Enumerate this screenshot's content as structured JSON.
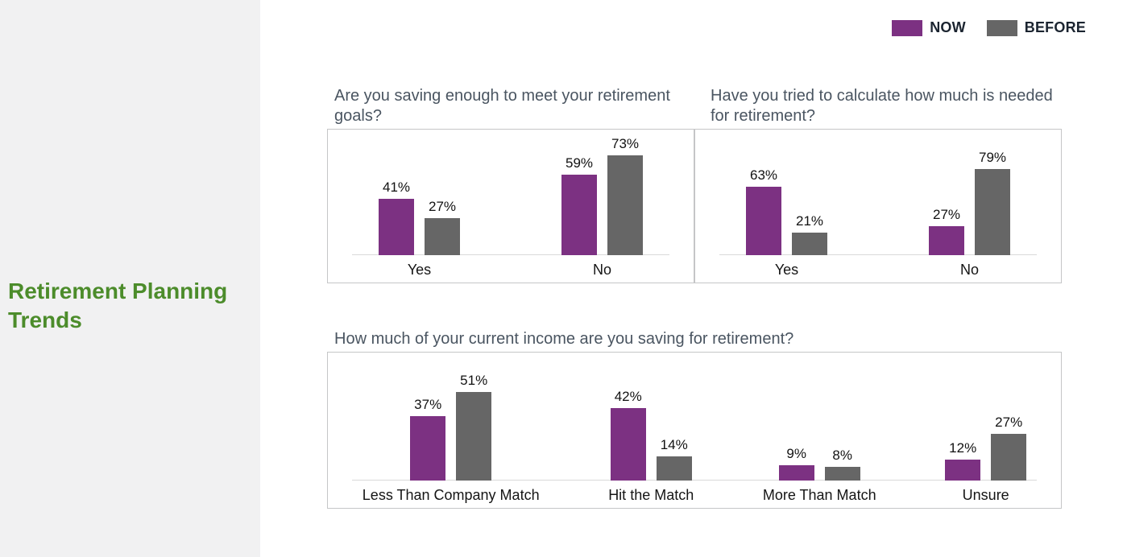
{
  "sidebar": {
    "title": "Retirement Planning Trends"
  },
  "legend": {
    "items": [
      {
        "label": "NOW",
        "color": "#7c3182"
      },
      {
        "label": "BEFORE",
        "color": "#666666"
      }
    ]
  },
  "colors": {
    "now": "#7c3182",
    "before": "#666666",
    "sidebar_title": "#4c8c2b",
    "chart_title": "#4a5561",
    "panel_border": "#c5c6c7",
    "baseline": "#d9d9d9",
    "legend_text": "#1b2430"
  },
  "chart_data": [
    {
      "type": "bar",
      "title": "Are you saving enough to meet your retirement goals?",
      "categories": [
        "Yes",
        "No"
      ],
      "series": [
        {
          "name": "NOW",
          "values": [
            41,
            59
          ]
        },
        {
          "name": "BEFORE",
          "values": [
            27,
            73
          ]
        }
      ],
      "unit": "%",
      "ylim": [
        0,
        93
      ],
      "grid": false,
      "legend_position": "top-right-shared",
      "data_labels": [
        [
          "41%",
          "59%"
        ],
        [
          "27%",
          "73%"
        ]
      ]
    },
    {
      "type": "bar",
      "title": "Have you tried to calculate how much is needed for retirement?",
      "categories": [
        "Yes",
        "No"
      ],
      "series": [
        {
          "name": "NOW",
          "values": [
            63,
            27
          ]
        },
        {
          "name": "BEFORE",
          "values": [
            21,
            79
          ]
        }
      ],
      "unit": "%",
      "ylim": [
        0,
        117
      ],
      "grid": false,
      "legend_position": "top-right-shared",
      "data_labels": [
        [
          "63%",
          "27%"
        ],
        [
          "21%",
          "79%"
        ]
      ]
    },
    {
      "type": "bar",
      "title": "How much of your current income are you saving for retirement?",
      "categories": [
        "Less Than Company Match",
        "Hit the Match",
        "More Than Match",
        "Unsure"
      ],
      "series": [
        {
          "name": "NOW",
          "values": [
            37,
            42,
            9,
            12
          ]
        },
        {
          "name": "BEFORE",
          "values": [
            51,
            14,
            8,
            27
          ]
        }
      ],
      "unit": "%",
      "ylim": [
        0,
        72.5
      ],
      "grid": false,
      "legend_position": "top-right-shared",
      "data_labels": [
        [
          "37%",
          "42%",
          "9%",
          "12%"
        ],
        [
          "51%",
          "14%",
          "8%",
          "27%"
        ]
      ]
    }
  ]
}
